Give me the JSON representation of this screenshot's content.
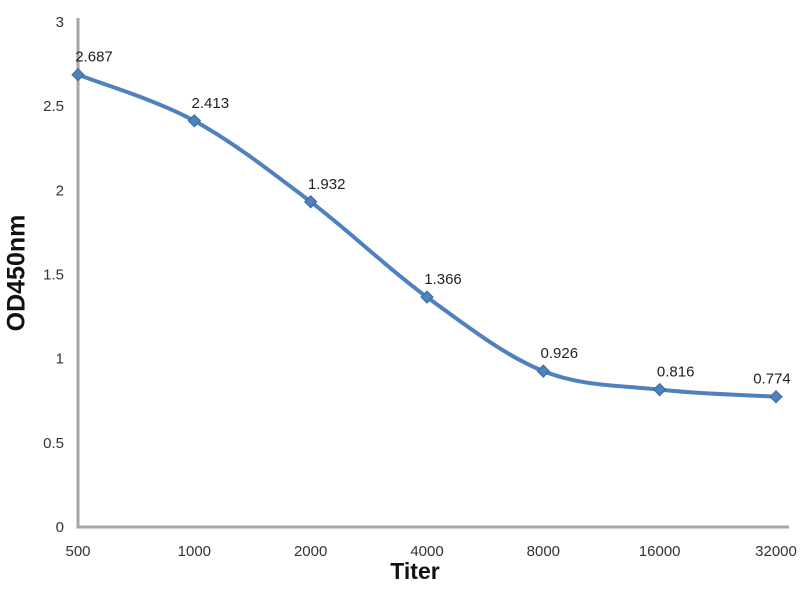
{
  "chart_data": {
    "type": "line",
    "title": "",
    "xlabel": "Titer",
    "ylabel": "OD450nm",
    "categories": [
      "500",
      "1000",
      "2000",
      "4000",
      "8000",
      "16000",
      "32000"
    ],
    "values": [
      2.687,
      2.413,
      1.932,
      1.366,
      0.926,
      0.816,
      0.774
    ],
    "data_labels": [
      "2.687",
      "2.413",
      "1.932",
      "1.366",
      "0.926",
      "0.816",
      "0.774"
    ],
    "y_ticks": [
      "0",
      "0.5",
      "1",
      "1.5",
      "2",
      "2.5",
      "3"
    ],
    "y_tick_values": [
      0,
      0.5,
      1,
      1.5,
      2,
      2.5,
      3
    ],
    "ylim": [
      0,
      3
    ],
    "x_scale": "log2-categorical",
    "grid": false,
    "legend": "none",
    "marker": "diamond",
    "smooth": true,
    "colors": {
      "line": "#4f81bd",
      "marker_fill": "#4f81bd",
      "marker_stroke": "#38689f",
      "axis": "#a6a6a6",
      "tick_text": "#333333",
      "data_label_text": "#1f1f1f",
      "axis_title_text": "#111111",
      "background": "#ffffff"
    }
  }
}
